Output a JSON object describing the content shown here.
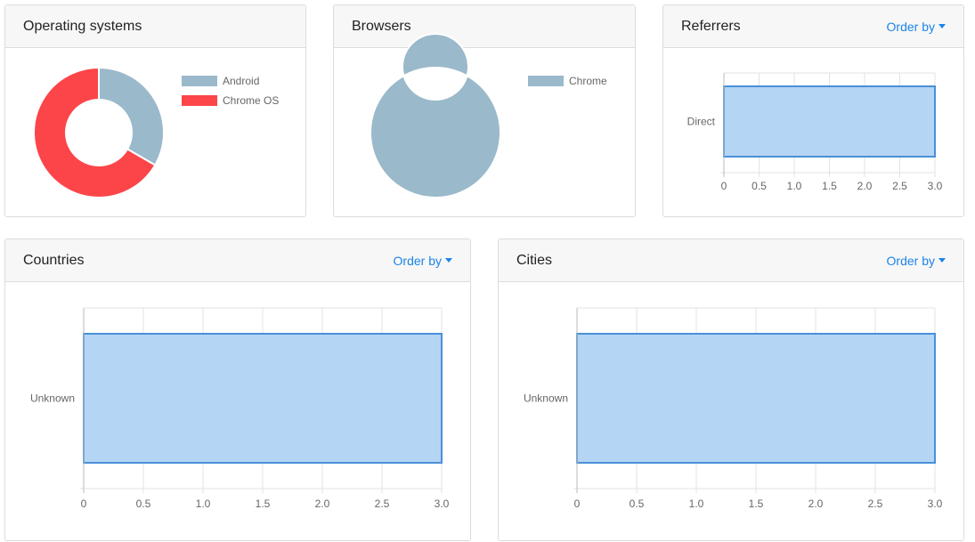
{
  "order_by_label": "Order by",
  "colors": {
    "android": "#9ab9cb",
    "chromeos": "#fc4549",
    "bar_fill": "#b4d5f3",
    "bar_stroke": "#4a90d9",
    "grid": "#e3e3e3"
  },
  "cards": {
    "os": {
      "title": "Operating systems"
    },
    "browsers": {
      "title": "Browsers"
    },
    "referrers": {
      "title": "Referrers"
    },
    "countries": {
      "title": "Countries"
    },
    "cities": {
      "title": "Cities"
    }
  },
  "chart_data": [
    {
      "id": "os",
      "type": "pie",
      "donut": true,
      "labels": [
        "Android",
        "Chrome OS"
      ],
      "values": [
        1,
        2
      ],
      "colors": [
        "#9ab9cb",
        "#fc4549"
      ],
      "legend": "right"
    },
    {
      "id": "browsers",
      "type": "pie",
      "donut": true,
      "labels": [
        "Chrome"
      ],
      "values": [
        3
      ],
      "colors": [
        "#9ab9cb"
      ],
      "legend": "right"
    },
    {
      "id": "referrers",
      "type": "bar",
      "orientation": "horizontal",
      "categories": [
        "Direct"
      ],
      "values": [
        3
      ],
      "xlim": [
        0,
        3
      ],
      "xticks": [
        "0",
        "0.5",
        "1.0",
        "1.5",
        "2.0",
        "2.5",
        "3.0"
      ],
      "grid": true
    },
    {
      "id": "countries",
      "type": "bar",
      "orientation": "horizontal",
      "categories": [
        "Unknown"
      ],
      "values": [
        3
      ],
      "xlim": [
        0,
        3
      ],
      "xticks": [
        "0",
        "0.5",
        "1.0",
        "1.5",
        "2.0",
        "2.5",
        "3.0"
      ],
      "grid": true
    },
    {
      "id": "cities",
      "type": "bar",
      "orientation": "horizontal",
      "categories": [
        "Unknown"
      ],
      "values": [
        3
      ],
      "xlim": [
        0,
        3
      ],
      "xticks": [
        "0",
        "0.5",
        "1.0",
        "1.5",
        "2.0",
        "2.5",
        "3.0"
      ],
      "grid": true
    }
  ]
}
